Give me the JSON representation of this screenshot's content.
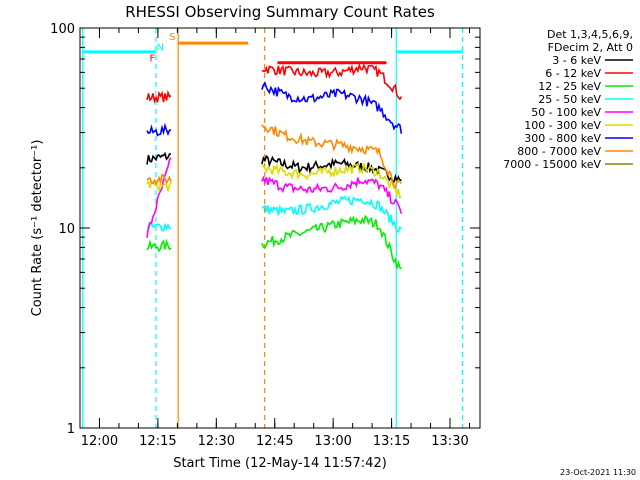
{
  "chart_data": {
    "type": "line",
    "title": "RHESSI Observing Summary Count Rates",
    "xlabel": "Start Time (12-May-14 11:57:42)",
    "ylabel": "Count Rate (s⁻¹ detector⁻¹)",
    "yscale": "log",
    "ylim": [
      1,
      100
    ],
    "xlim_minutes_after_start": [
      -2.7,
      100
    ],
    "x_ticks": [
      {
        "label": "12:00",
        "min": 2.3
      },
      {
        "label": "12:15",
        "min": 17.3
      },
      {
        "label": "12:30",
        "min": 32.3
      },
      {
        "label": "12:45",
        "min": 47.3
      },
      {
        "label": "13:00",
        "min": 62.3
      },
      {
        "label": "13:15",
        "min": 77.3
      },
      {
        "label": "13:30",
        "min": 92.3
      }
    ],
    "y_ticks": [
      {
        "label": "1",
        "value": 1
      },
      {
        "label": "10",
        "value": 10
      },
      {
        "label": "100",
        "value": 100
      }
    ],
    "legend_title_lines": [
      "Det 1,3,4,5,6,9,",
      "FDecim 2, Att 0"
    ],
    "legend_placement": "top-right",
    "timestamp": "23-Oct-2021 11:30",
    "series": [
      {
        "name": "3 - 6 keV",
        "color": "#000000",
        "segments": [
          [
            [
              14.5,
              22
            ],
            [
              21,
              23
            ]
          ],
          [
            [
              44,
              22
            ],
            [
              54,
              20
            ],
            [
              64,
              21
            ],
            [
              72,
              20
            ],
            [
              78,
              18
            ],
            [
              80,
              17
            ]
          ]
        ]
      },
      {
        "name": "6 - 12 keV",
        "color": "#ff0000",
        "segments": [
          [
            [
              14.5,
              45
            ],
            [
              21,
              45
            ]
          ],
          [
            [
              44,
              63
            ],
            [
              50,
              61
            ],
            [
              56,
              59
            ],
            [
              64,
              60
            ],
            [
              70,
              64
            ],
            [
              74,
              60
            ],
            [
              78,
              50
            ],
            [
              80,
              44
            ]
          ]
        ]
      },
      {
        "name": "12 - 25 keV",
        "color": "#00ee00",
        "segments": [
          [
            [
              14.5,
              8
            ],
            [
              21,
              8.2
            ]
          ],
          [
            [
              44,
              8.3
            ],
            [
              50,
              9
            ],
            [
              56,
              9.6
            ],
            [
              64,
              10.5
            ],
            [
              70,
              11
            ],
            [
              74,
              10.4
            ],
            [
              78,
              7
            ],
            [
              80,
              6
            ]
          ]
        ]
      },
      {
        "name": "25 - 50 keV",
        "color": "#00ffff",
        "segments": [
          [
            [
              14.5,
              10
            ],
            [
              21,
              10.3
            ]
          ],
          [
            [
              44,
              12.5
            ],
            [
              50,
              12
            ],
            [
              56,
              12.5
            ],
            [
              64,
              13.5
            ],
            [
              70,
              14
            ],
            [
              74,
              13
            ],
            [
              78,
              10.5
            ],
            [
              80,
              9.5
            ]
          ]
        ]
      },
      {
        "name": "50 - 100 keV",
        "color": "#ff00ff",
        "segments": [
          [
            [
              14.5,
              9.2
            ],
            [
              21,
              23
            ]
          ],
          [
            [
              44,
              17.5
            ],
            [
              50,
              16
            ],
            [
              56,
              15.5
            ],
            [
              64,
              16
            ],
            [
              70,
              17.5
            ],
            [
              74,
              16.5
            ],
            [
              78,
              13.5
            ],
            [
              80,
              12
            ]
          ]
        ]
      },
      {
        "name": "100 - 300 keV",
        "color": "#dddd00",
        "segments": [
          [
            [
              14.5,
              16.5
            ],
            [
              21,
              16
            ]
          ],
          [
            [
              44,
              20
            ],
            [
              50,
              19
            ],
            [
              56,
              18.5
            ],
            [
              64,
              19.5
            ],
            [
              70,
              20
            ],
            [
              74,
              19
            ],
            [
              78,
              15.5
            ],
            [
              80,
              14.5
            ]
          ]
        ]
      },
      {
        "name": "300 - 800 keV",
        "color": "#0000ff",
        "segments": [
          [
            [
              14.5,
              30
            ],
            [
              21,
              31
            ]
          ],
          [
            [
              44,
              52
            ],
            [
              50,
              46
            ],
            [
              56,
              44
            ],
            [
              64,
              47
            ],
            [
              70,
              44
            ],
            [
              74,
              40
            ],
            [
              78,
              33
            ],
            [
              80,
              31
            ]
          ]
        ]
      },
      {
        "name": "800 - 7000 keV",
        "color": "#ff8800",
        "segments": [
          [
            [
              14.5,
              17.5
            ],
            [
              21,
              17.5
            ]
          ],
          [
            [
              44,
              33
            ],
            [
              50,
              29
            ],
            [
              56,
              27
            ],
            [
              64,
              26
            ],
            [
              70,
              25
            ],
            [
              74,
              24
            ],
            [
              78,
              17
            ],
            [
              80,
              16
            ]
          ]
        ]
      },
      {
        "name": "7000 - 15000 keV",
        "color": "#888800",
        "segments": []
      }
    ],
    "flag_lines": [
      {
        "min": -2,
        "color": "#00ffff",
        "dashed": false
      },
      {
        "min": 16.8,
        "color": "#00ffff",
        "dashed": true
      },
      {
        "min": 22.5,
        "color": "#ff8800",
        "dashed": false
      },
      {
        "min": 44.7,
        "color": "#ff8800",
        "dashed": true
      },
      {
        "min": 78.5,
        "color": "#00ffff",
        "dashed": false
      },
      {
        "min": 95.5,
        "color": "#00ffff",
        "dashed": true
      }
    ],
    "flag_bars": [
      {
        "from": -2,
        "to": 16.8,
        "value": 76,
        "color": "#00ffff"
      },
      {
        "from": 22.5,
        "to": 40.5,
        "value": 84,
        "color": "#ff8800"
      },
      {
        "from": 48,
        "to": 76,
        "value": 67,
        "color": "#ff0000"
      },
      {
        "from": 78.5,
        "to": 95.5,
        "value": 76,
        "color": "#00ffff"
      }
    ],
    "flag_labels": [
      {
        "text": "F",
        "min": 15.9,
        "value": 68,
        "color": "#ff0000"
      },
      {
        "text": "N",
        "min": 17.9,
        "value": 77,
        "color": "#00ffff"
      },
      {
        "text": "S",
        "min": 21.0,
        "value": 87,
        "color": "#ff8800"
      }
    ]
  }
}
